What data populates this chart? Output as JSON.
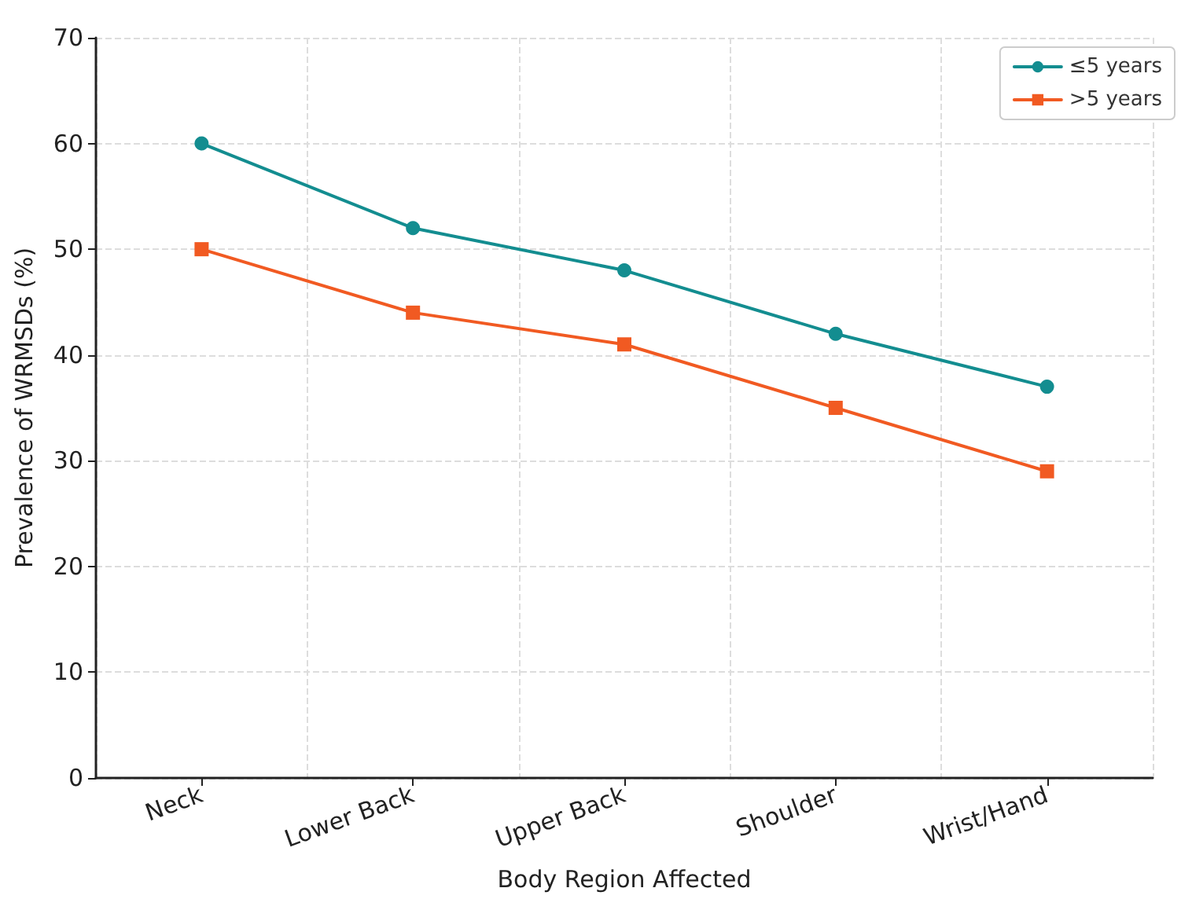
{
  "chart_data": {
    "type": "line",
    "xlabel": "Body Region Affected",
    "ylabel": "Prevalence of WRMSDs (%)",
    "categories": [
      "Neck",
      "Lower Back",
      "Upper Back",
      "Shoulder",
      "Wrist/Hand"
    ],
    "series": [
      {
        "name": "≤5 years",
        "color": "#138d90",
        "marker": "circle",
        "values": [
          60,
          52,
          48,
          42,
          37
        ]
      },
      {
        "name": ">5 years",
        "color": "#f15a22",
        "marker": "square",
        "values": [
          50,
          44,
          41,
          35,
          29
        ]
      }
    ],
    "ylim": [
      0,
      70
    ],
    "yticks": [
      0,
      10,
      20,
      30,
      40,
      50,
      60,
      70
    ],
    "grid": true,
    "legend": "top right",
    "line_style": "solid"
  }
}
